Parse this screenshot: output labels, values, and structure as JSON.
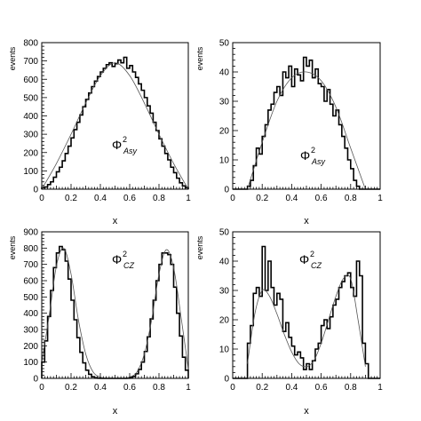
{
  "chart_data": [
    {
      "type": "histogram",
      "panel": "top-left",
      "ylabel": "events",
      "xlabel": "x",
      "xlim": [
        0,
        1
      ],
      "ylim": [
        0,
        800
      ],
      "xticks": [
        0,
        0.2,
        0.4,
        0.6,
        0.8,
        1
      ],
      "xtick_labels": [
        "0",
        "0.2",
        "0.4",
        "0.6",
        "0.8",
        "1"
      ],
      "yticks": [
        0,
        100,
        200,
        300,
        400,
        500,
        600,
        700,
        800
      ],
      "ytick_labels": [
        "0",
        "100",
        "200",
        "300",
        "400",
        "500",
        "600",
        "700",
        "800"
      ],
      "annotation": {
        "main": "Φ",
        "sup": "2",
        "sub": "Asy"
      },
      "bins": {
        "x_start": 0,
        "width": 0.02,
        "values": [
          8,
          12,
          25,
          40,
          65,
          95,
          120,
          155,
          195,
          235,
          280,
          325,
          365,
          405,
          450,
          490,
          525,
          560,
          590,
          615,
          640,
          660,
          680,
          690,
          670,
          685,
          705,
          690,
          720,
          660,
          675,
          640,
          610,
          575,
          540,
          500,
          455,
          415,
          365,
          320,
          275,
          235,
          195,
          160,
          120,
          90,
          60,
          35,
          18,
          8
        ]
      },
      "fit": {
        "x": [
          0,
          0.1,
          0.2,
          0.3,
          0.4,
          0.5,
          0.6,
          0.7,
          0.8,
          0.9,
          1.0
        ],
        "values": [
          0,
          140,
          300,
          470,
          620,
          690,
          620,
          470,
          300,
          140,
          0
        ]
      }
    },
    {
      "type": "histogram",
      "panel": "top-right",
      "ylabel": "events",
      "xlabel": "x",
      "xlim": [
        0,
        1
      ],
      "ylim": [
        0,
        50
      ],
      "xticks": [
        0,
        0.2,
        0.4,
        0.6,
        0.8,
        1
      ],
      "xtick_labels": [
        "0",
        "0.2",
        "0.4",
        "0.6",
        "0.8",
        "1"
      ],
      "yticks": [
        0,
        10,
        20,
        30,
        40,
        50
      ],
      "ytick_labels": [
        "0",
        "10",
        "20",
        "30",
        "40",
        "50"
      ],
      "annotation": {
        "main": "Φ",
        "sup": "2",
        "sub": "Asy"
      },
      "bins": {
        "x_start": 0,
        "width": 0.02,
        "values": [
          0,
          0,
          0,
          0,
          0,
          1,
          3,
          8,
          14,
          12,
          18,
          22,
          27,
          29,
          33,
          35,
          32,
          40,
          38,
          42,
          35,
          41,
          39,
          37,
          45,
          42,
          44,
          38,
          41,
          36,
          35,
          30,
          34,
          29,
          25,
          27,
          22,
          18,
          14,
          10,
          7,
          3,
          1,
          0,
          0,
          0,
          0,
          0,
          0,
          0
        ]
      },
      "fit": {
        "x": [
          0.1,
          0.2,
          0.3,
          0.4,
          0.5,
          0.6,
          0.7,
          0.8,
          0.9
        ],
        "values": [
          0,
          16,
          30,
          38,
          40,
          37,
          28,
          14,
          0
        ]
      }
    },
    {
      "type": "histogram",
      "panel": "bottom-left",
      "ylabel": "events",
      "xlabel": "x",
      "xlim": [
        0,
        1
      ],
      "ylim": [
        0,
        900
      ],
      "xticks": [
        0,
        0.2,
        0.4,
        0.6,
        0.8,
        1
      ],
      "xtick_labels": [
        "0",
        "0.2",
        "0.4",
        "0.6",
        "0.8",
        "1"
      ],
      "yticks": [
        0,
        100,
        200,
        300,
        400,
        500,
        600,
        700,
        800,
        900
      ],
      "ytick_labels": [
        "0",
        "100",
        "200",
        "300",
        "400",
        "500",
        "600",
        "700",
        "800",
        "900"
      ],
      "annotation": {
        "main": "Φ",
        "sup": "2",
        "sub": "CZ"
      },
      "bins": {
        "x_start": 0,
        "width": 0.02,
        "values": [
          100,
          230,
          380,
          540,
          680,
          770,
          810,
          790,
          720,
          610,
          480,
          360,
          250,
          160,
          95,
          50,
          25,
          10,
          4,
          1,
          0,
          0,
          0,
          0,
          0,
          0,
          0,
          0,
          0,
          1,
          5,
          12,
          28,
          55,
          100,
          165,
          255,
          365,
          480,
          600,
          700,
          770,
          770,
          760,
          700,
          560,
          400,
          260,
          130,
          50
        ]
      },
      "fit": {
        "x": [
          0,
          0.05,
          0.1,
          0.15,
          0.2,
          0.25,
          0.3,
          0.35,
          0.4,
          0.45,
          0.5,
          0.55,
          0.6,
          0.65,
          0.7,
          0.75,
          0.8,
          0.85,
          0.9,
          0.95,
          1.0
        ],
        "values": [
          100,
          380,
          690,
          800,
          640,
          360,
          150,
          40,
          8,
          0,
          0,
          0,
          8,
          40,
          150,
          360,
          640,
          790,
          680,
          380,
          60
        ]
      }
    },
    {
      "type": "histogram",
      "panel": "bottom-right",
      "ylabel": "events",
      "xlabel": "x",
      "xlim": [
        0,
        1
      ],
      "ylim": [
        0,
        50
      ],
      "xticks": [
        0,
        0.2,
        0.4,
        0.6,
        0.8,
        1
      ],
      "xtick_labels": [
        "0",
        "0.2",
        "0.4",
        "0.6",
        "0.8",
        "1"
      ],
      "yticks": [
        0,
        10,
        20,
        30,
        40,
        50
      ],
      "ytick_labels": [
        "0",
        "10",
        "20",
        "30",
        "40",
        "50"
      ],
      "annotation": {
        "main": "Φ",
        "sup": "2",
        "sub": "CZ"
      },
      "bins": {
        "x_start": 0,
        "width": 0.02,
        "values": [
          0,
          0,
          0,
          0,
          0,
          12,
          18,
          29,
          31,
          28,
          45,
          30,
          40,
          31,
          25,
          29,
          27,
          16,
          19,
          14,
          11,
          8,
          9,
          7,
          3,
          5,
          3,
          6,
          10,
          12,
          18,
          20,
          17,
          21,
          25,
          27,
          31,
          33,
          35,
          36,
          31,
          28,
          40,
          35,
          12,
          5,
          0,
          0,
          0,
          0
        ]
      },
      "fit": {
        "x": [
          0.1,
          0.15,
          0.2,
          0.25,
          0.3,
          0.35,
          0.4,
          0.45,
          0.5,
          0.55,
          0.6,
          0.65,
          0.7,
          0.75,
          0.8,
          0.85,
          0.9
        ],
        "values": [
          5,
          22,
          30,
          28,
          22,
          15,
          9,
          5,
          4,
          6,
          12,
          20,
          28,
          34,
          34,
          20,
          4
        ]
      }
    }
  ]
}
